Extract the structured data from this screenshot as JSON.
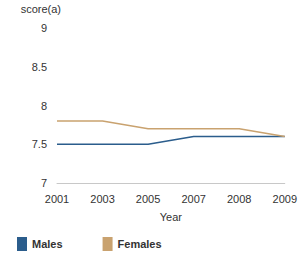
{
  "chart_data": {
    "type": "line",
    "y_label": "score(a)",
    "x_label": "Year",
    "categories": [
      "2001",
      "2003",
      "2005",
      "2007",
      "2008",
      "2009"
    ],
    "series": [
      {
        "name": "Males",
        "color": "#2b5d8c",
        "values": [
          7.5,
          7.5,
          7.5,
          7.6,
          7.6,
          7.6
        ]
      },
      {
        "name": "Females",
        "color": "#c9a26f",
        "values": [
          7.8,
          7.8,
          7.7,
          7.7,
          7.7,
          7.6
        ]
      }
    ],
    "ylim": [
      7,
      9
    ],
    "yticks": [
      7,
      7.5,
      8,
      8.5,
      9
    ],
    "grid": false,
    "legend": "bottom"
  }
}
